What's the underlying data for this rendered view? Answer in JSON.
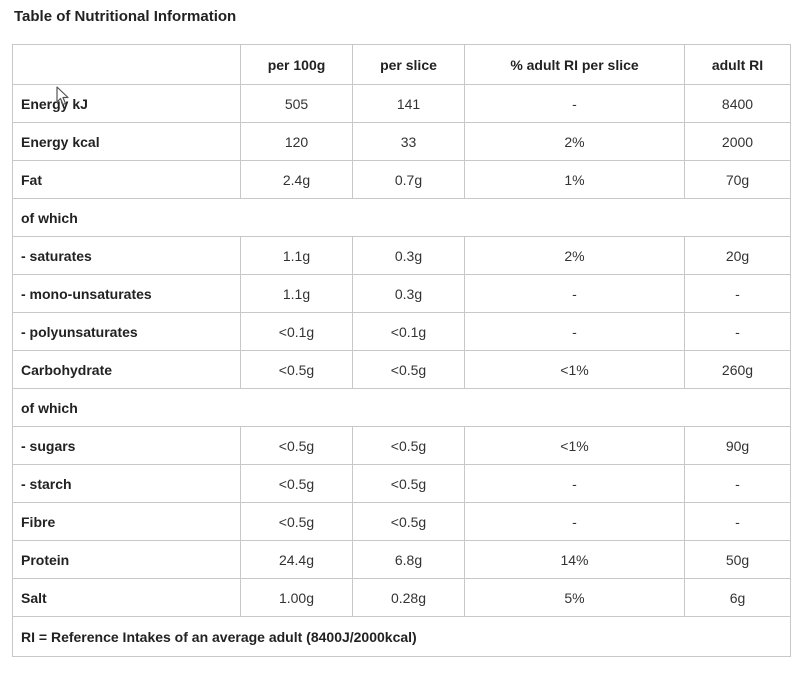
{
  "title": "Table of Nutritional Information",
  "headers": [
    "",
    "per 100g",
    "per slice",
    "% adult RI per slice",
    "adult RI"
  ],
  "rows": [
    {
      "type": "data",
      "label": "Energy kJ",
      "values": [
        "505",
        "141",
        "-",
        "8400"
      ]
    },
    {
      "type": "data",
      "label": "Energy kcal",
      "values": [
        "120",
        "33",
        "2%",
        "2000"
      ]
    },
    {
      "type": "data",
      "label": "Fat",
      "values": [
        "2.4g",
        "0.7g",
        "1%",
        "70g"
      ]
    },
    {
      "type": "sub",
      "label": "of which"
    },
    {
      "type": "data",
      "label": "- saturates",
      "values": [
        "1.1g",
        "0.3g",
        "2%",
        "20g"
      ]
    },
    {
      "type": "data",
      "label": "- mono-unsaturates",
      "values": [
        "1.1g",
        "0.3g",
        "-",
        "-"
      ]
    },
    {
      "type": "data",
      "label": "- polyunsaturates",
      "values": [
        "<0.1g",
        "<0.1g",
        "-",
        "-"
      ]
    },
    {
      "type": "data",
      "label": "Carbohydrate",
      "values": [
        "<0.5g",
        "<0.5g",
        "<1%",
        "260g"
      ]
    },
    {
      "type": "sub",
      "label": "of which"
    },
    {
      "type": "data",
      "label": "- sugars",
      "values": [
        "<0.5g",
        "<0.5g",
        "<1%",
        "90g"
      ]
    },
    {
      "type": "data",
      "label": "- starch",
      "values": [
        "<0.5g",
        "<0.5g",
        "-",
        "-"
      ]
    },
    {
      "type": "data",
      "label": "Fibre",
      "values": [
        "<0.5g",
        "<0.5g",
        "-",
        "-"
      ]
    },
    {
      "type": "data",
      "label": "Protein",
      "values": [
        "24.4g",
        "6.8g",
        "14%",
        "50g"
      ]
    },
    {
      "type": "data",
      "label": "Salt",
      "values": [
        "1.00g",
        "0.28g",
        "5%",
        "6g"
      ]
    }
  ],
  "footnote": "RI = Reference Intakes of an average adult (8400J/2000kcal)",
  "icons": {
    "cursor": "mouse-pointer-icon"
  },
  "colors": {
    "border": "#c8c8c8",
    "text": "#222222"
  }
}
